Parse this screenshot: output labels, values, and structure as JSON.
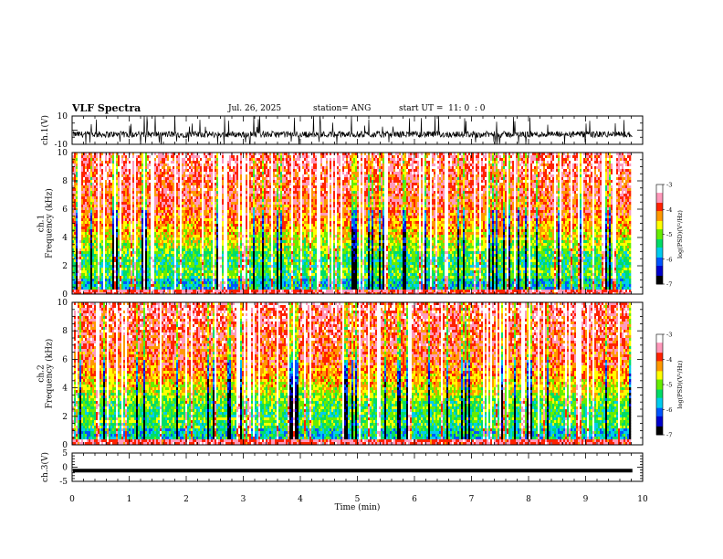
{
  "header": {
    "title": "VLF Spectra",
    "date": "Jul. 26, 2025",
    "station": "station= ANG",
    "start": "start UT =  11: 0  : 0"
  },
  "chart_data": [
    {
      "type": "line",
      "ylabel": "ch.1(V)",
      "ylim": [
        -10,
        10
      ],
      "yticks": [
        "10",
        "-10"
      ],
      "xlim": [
        0,
        10
      ],
      "series": [
        {
          "pattern": "noisy signal around -3 V with frequent spikes to +10"
        }
      ]
    },
    {
      "type": "heatmap",
      "ylabel": "ch.1\nFrequency (kHz)",
      "ylabel_lines": [
        "ch.1",
        "Frequency (kHz)"
      ],
      "ylim": [
        0,
        10
      ],
      "yticks": [
        "0",
        "2",
        "4",
        "6",
        "8",
        "10"
      ],
      "xlim": [
        0,
        10
      ],
      "colorbar": {
        "label": "log(PSD)(V²/Hz)",
        "range": [
          -7,
          -3
        ],
        "ticks": [
          "-3",
          "-4",
          "-5",
          "-6",
          "-7"
        ]
      }
    },
    {
      "type": "heatmap",
      "ylabel": "ch.2\nFrequency (kHz)",
      "ylabel_lines": [
        "ch.2",
        "Frequency (kHz)"
      ],
      "ylim": [
        0,
        10
      ],
      "yticks": [
        "0",
        "2",
        "4",
        "6",
        "8",
        "10"
      ],
      "xlim": [
        0,
        10
      ],
      "colorbar": {
        "label": "log(PSD)(V²/Hz)",
        "range": [
          -7,
          -3
        ],
        "ticks": [
          "-3",
          "-4",
          "-5",
          "-6",
          "-7"
        ]
      }
    },
    {
      "type": "line",
      "ylabel": "ch.3(V)",
      "ylim": [
        -5,
        5
      ],
      "yticks": [
        "5",
        "0",
        "-5"
      ],
      "xlim": [
        0,
        10
      ],
      "series": [
        {
          "constant": -1.2
        }
      ]
    }
  ],
  "xaxis": {
    "label": "Time (min)",
    "ticks": [
      "0",
      "1",
      "2",
      "3",
      "4",
      "5",
      "6",
      "7",
      "8",
      "9",
      "10"
    ]
  },
  "colors": {
    "cmap": [
      "#000000",
      "#0000cc",
      "#0055ff",
      "#00ccee",
      "#00dd66",
      "#66ee00",
      "#ffff00",
      "#ff9900",
      "#ff2200",
      "#ff99bb",
      "#ffffff"
    ]
  }
}
